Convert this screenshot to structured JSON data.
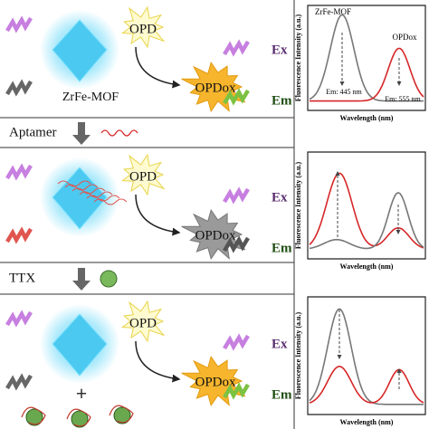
{
  "panels": [
    {
      "opd": "OPD",
      "mof": "ZrFe-MOF",
      "opdox": "OPDox",
      "ex": "Ex",
      "em": "Em",
      "chart": {
        "y_label": "Fluorescence Intensity (a.u.)",
        "x_label": "Wavelength (nm)",
        "peak_labels": [
          "ZrFe-MOF",
          "OPDox"
        ],
        "em_labels": [
          "Em: 445 nm",
          "Em: 555 nm"
        ]
      }
    },
    {
      "opd": "OPD",
      "opdox": "OPDox",
      "ex": "Ex",
      "em": "Em",
      "chart": {
        "y_label": "Fluorescence Intensity (a.u.)",
        "x_label": "Wavelength (nm)"
      }
    },
    {
      "opd": "OPD",
      "opdox": "OPDox",
      "ex": "Ex",
      "em": "Em",
      "plus": "+",
      "chart": {
        "y_label": "Fluorescence Intensity (a.u.)",
        "x_label": "Wavelength (nm)"
      }
    }
  ],
  "steps": [
    "Aptamer",
    "TTX"
  ]
}
